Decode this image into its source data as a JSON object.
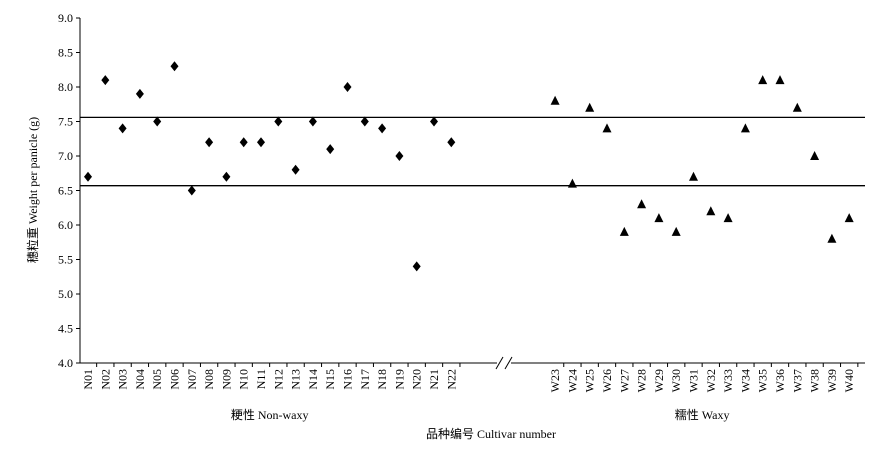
{
  "chart_data": {
    "type": "scatter",
    "ylabel": "穗粒重 Weight per panicle (g)",
    "xlabel": "品种编号 Cultivar number",
    "ylim": [
      4.0,
      9.0
    ],
    "yticks": [
      {
        "value": 4,
        "label": "4.0"
      },
      4.5,
      {
        "value": 5,
        "label": "5.0"
      },
      5.5,
      {
        "value": 6,
        "label": "6.0"
      },
      6.5,
      {
        "value": 7,
        "label": "7.0"
      },
      7.5,
      {
        "value": 8,
        "label": "8.0"
      },
      8.5,
      {
        "value": 9,
        "label": "9.0"
      }
    ],
    "reference_lines": [
      7.56,
      6.57
    ],
    "series": [
      {
        "name": "粳性 Non-waxy",
        "color": "#000000",
        "marker": "diamond",
        "categories": [
          "N01",
          "N02",
          "N03",
          "N04",
          "N05",
          "N06",
          "N07",
          "N08",
          "N09",
          "N10",
          "N11",
          "N12",
          "N13",
          "N14",
          "N15",
          "N16",
          "N17",
          "N18",
          "N19",
          "N20",
          "N21",
          "N22"
        ],
        "values": [
          6.7,
          8.1,
          7.4,
          7.9,
          7.5,
          8.3,
          6.5,
          7.2,
          6.7,
          7.2,
          7.2,
          7.5,
          6.8,
          7.5,
          7.1,
          8.0,
          7.5,
          7.4,
          7.0,
          5.4,
          7.5,
          7.2
        ]
      },
      {
        "name": "糯性 Waxy",
        "color": "#000000",
        "marker": "triangle",
        "categories": [
          "W23",
          "W24",
          "W25",
          "W26",
          "W27",
          "W28",
          "W29",
          "W30",
          "W31",
          "W32",
          "W33",
          "W34",
          "W35",
          "W36",
          "W37",
          "W38",
          "W39",
          "W40"
        ],
        "values": [
          7.8,
          6.6,
          7.7,
          7.4,
          5.9,
          6.3,
          6.1,
          5.9,
          6.7,
          6.2,
          6.1,
          7.4,
          8.1,
          8.1,
          7.7,
          7.0,
          5.8,
          6.1
        ]
      }
    ]
  }
}
